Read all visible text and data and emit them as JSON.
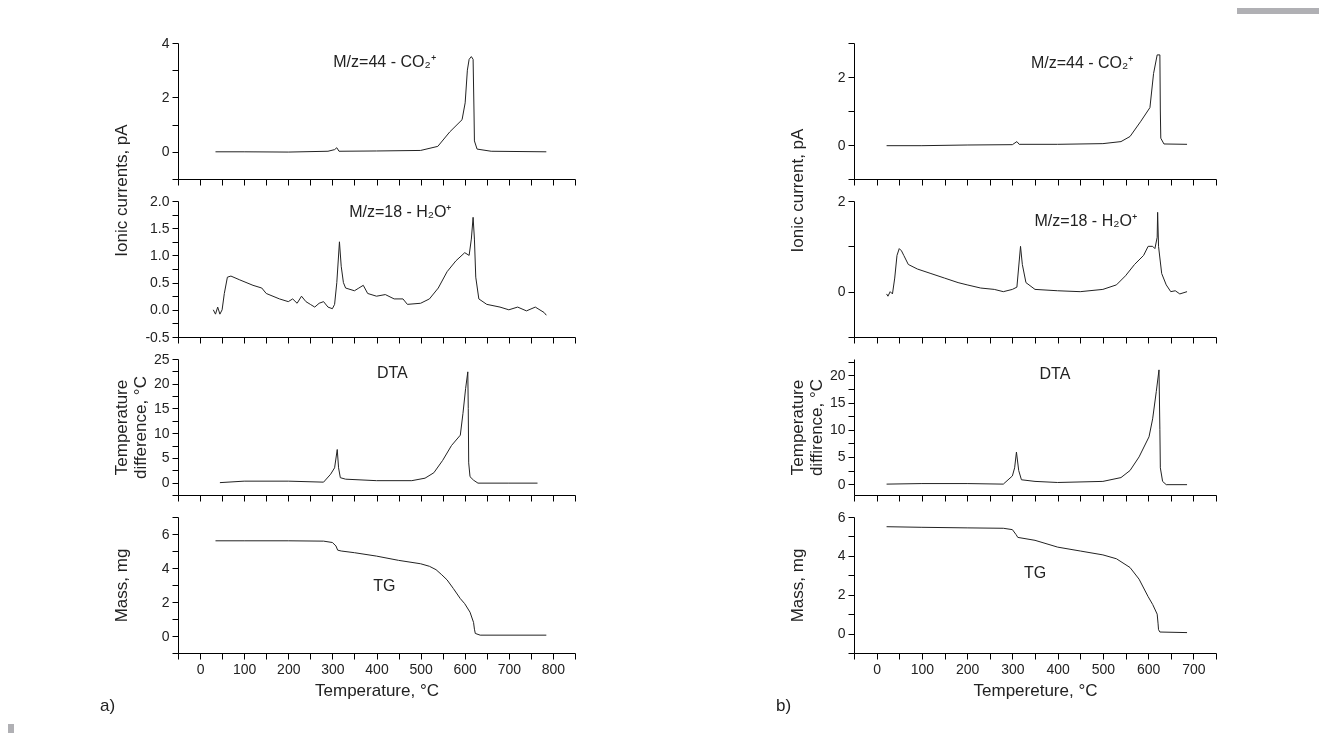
{
  "chart_data": [
    {
      "type": "line",
      "ylabel": "Ionic currents, pA",
      "xlim": [
        -50,
        850
      ],
      "xticks": [
        {
          "value": -50,
          "label": null
        },
        0,
        {
          "value": 50,
          "label": null
        },
        100,
        {
          "value": 150,
          "label": null
        },
        200,
        {
          "value": 250,
          "label": null
        },
        300,
        {
          "value": 350,
          "label": null
        },
        400,
        {
          "value": 450,
          "label": null
        },
        500,
        {
          "value": 550,
          "label": null
        },
        600,
        {
          "value": 650,
          "label": null
        },
        700,
        {
          "value": 750,
          "label": null
        },
        800,
        {
          "value": 850,
          "label": null
        }
      ],
      "ylim": [
        -1,
        4
      ],
      "yticks": [
        {
          "value": -1,
          "label": null
        },
        0,
        {
          "value": 1,
          "label": null
        },
        2,
        {
          "value": 3,
          "label": null
        },
        4
      ],
      "tick_labels": "y",
      "grid": false,
      "color": "#222222",
      "annotations": [
        "M/z=44 - CO₂⁺"
      ],
      "x": [
        35,
        100,
        200,
        290,
        305,
        310,
        315,
        400,
        500,
        539,
        566,
        594,
        601,
        606,
        610,
        615,
        619,
        621,
        622,
        628,
        660,
        785
      ],
      "values": [
        0,
        0,
        -0.01,
        0.02,
        0.08,
        0.15,
        0.02,
        0.03,
        0.05,
        0.2,
        0.73,
        1.18,
        1.8,
        3.0,
        3.4,
        3.5,
        3.4,
        1.5,
        0.4,
        0.1,
        0.02,
        0
      ]
    },
    {
      "type": "line",
      "xlim": [
        -50,
        850
      ],
      "xticks": [
        {
          "value": -50,
          "label": null
        },
        0,
        {
          "value": 50,
          "label": null
        },
        100,
        {
          "value": 150,
          "label": null
        },
        200,
        {
          "value": 250,
          "label": null
        },
        300,
        {
          "value": 350,
          "label": null
        },
        400,
        {
          "value": 450,
          "label": null
        },
        500,
        {
          "value": 550,
          "label": null
        },
        600,
        {
          "value": 650,
          "label": null
        },
        700,
        {
          "value": 750,
          "label": null
        },
        800,
        {
          "value": 850,
          "label": null
        }
      ],
      "ylim": [
        -0.5,
        2.0
      ],
      "yticks": [
        -0.5,
        {
          "value": -0.25,
          "label": null
        },
        {
          "value": 0,
          "label": "0.0"
        },
        {
          "value": 0.25,
          "label": null
        },
        0.5,
        {
          "value": 0.75,
          "label": null
        },
        {
          "value": 1,
          "label": "1.0"
        },
        {
          "value": 1.25,
          "label": null
        },
        1.5,
        {
          "value": 1.75,
          "label": null
        },
        {
          "value": 2,
          "label": "2.0"
        }
      ],
      "tick_labels": "y",
      "grid": false,
      "color": "#222222",
      "annotations": [
        "M/z=18 - H₂O⁺"
      ],
      "x": [
        30,
        35,
        40,
        45,
        50,
        55,
        62,
        70,
        90,
        120,
        140,
        150,
        180,
        200,
        210,
        220,
        230,
        240,
        250,
        260,
        270,
        280,
        290,
        300,
        305,
        310,
        316,
        320,
        325,
        330,
        350,
        360,
        370,
        380,
        400,
        420,
        440,
        460,
        470,
        500,
        520,
        540,
        560,
        580,
        600,
        610,
        615,
        619,
        622,
        625,
        632,
        650,
        680,
        700,
        720,
        740,
        760,
        780,
        785
      ],
      "values": [
        0,
        -0.08,
        0.05,
        -0.08,
        0,
        0.3,
        0.6,
        0.62,
        0.55,
        0.45,
        0.4,
        0.3,
        0.2,
        0.15,
        0.2,
        0.12,
        0.25,
        0.15,
        0.1,
        0.05,
        0.12,
        0.15,
        0.05,
        0.02,
        0.1,
        0.5,
        1.25,
        0.8,
        0.5,
        0.4,
        0.35,
        0.4,
        0.45,
        0.3,
        0.25,
        0.28,
        0.2,
        0.2,
        0.1,
        0.12,
        0.2,
        0.4,
        0.7,
        0.9,
        1.05,
        1.0,
        1.3,
        1.7,
        1.3,
        0.6,
        0.2,
        0.1,
        0.05,
        0,
        0.05,
        -0.02,
        0.05,
        -0.05,
        -0.1
      ]
    },
    {
      "type": "line",
      "ylabel": "Temperature\ndifference, °C",
      "xlim": [
        -50,
        850
      ],
      "xticks": [
        {
          "value": -50,
          "label": null
        },
        0,
        {
          "value": 50,
          "label": null
        },
        100,
        {
          "value": 150,
          "label": null
        },
        200,
        {
          "value": 250,
          "label": null
        },
        300,
        {
          "value": 350,
          "label": null
        },
        400,
        {
          "value": 450,
          "label": null
        },
        500,
        {
          "value": 550,
          "label": null
        },
        600,
        {
          "value": 650,
          "label": null
        },
        700,
        {
          "value": 750,
          "label": null
        },
        800,
        {
          "value": 850,
          "label": null
        }
      ],
      "ylim": [
        -2.5,
        25
      ],
      "yticks": [
        {
          "value": -2.5,
          "label": null
        },
        0,
        {
          "value": 2.5,
          "label": null
        },
        5,
        {
          "value": 7.5,
          "label": null
        },
        10,
        {
          "value": 12.5,
          "label": null
        },
        15,
        {
          "value": 17.5,
          "label": null
        },
        20,
        {
          "value": 22.5,
          "label": null
        },
        25
      ],
      "tick_labels": "y",
      "grid": false,
      "color": "#222222",
      "annotations": [
        "DTA"
      ],
      "x": [
        45,
        100,
        200,
        280,
        296,
        305,
        311,
        314,
        318,
        330,
        400,
        480,
        510,
        530,
        550,
        570,
        590,
        596,
        602,
        607,
        608,
        609,
        612,
        620,
        630,
        700,
        765
      ],
      "values": [
        0,
        0.3,
        0.3,
        0.1,
        1.7,
        3,
        6.7,
        3,
        1.0,
        0.7,
        0.4,
        0.4,
        0.9,
        2,
        4.5,
        7.5,
        9.6,
        14,
        19,
        22.4,
        15,
        4,
        1.2,
        0.5,
        -0.1,
        -0.1,
        -0.1
      ]
    },
    {
      "type": "line",
      "ylabel": "Mass, mg",
      "xlabel": "Temperature, °C",
      "xlim": [
        -50,
        850
      ],
      "xticks": [
        {
          "value": -50,
          "label": null
        },
        0,
        {
          "value": 50,
          "label": null
        },
        100,
        {
          "value": 150,
          "label": null
        },
        200,
        {
          "value": 250,
          "label": null
        },
        300,
        {
          "value": 350,
          "label": null
        },
        400,
        {
          "value": 450,
          "label": null
        },
        500,
        {
          "value": 550,
          "label": null
        },
        600,
        {
          "value": 650,
          "label": null
        },
        700,
        {
          "value": 750,
          "label": null
        },
        800,
        {
          "value": 850,
          "label": null
        }
      ],
      "ylim": [
        -1,
        7
      ],
      "yticks": [
        {
          "value": -1,
          "label": null
        },
        0,
        {
          "value": 1,
          "label": null
        },
        2,
        {
          "value": 3,
          "label": null
        },
        4,
        {
          "value": 5,
          "label": null
        },
        6,
        {
          "value": 7,
          "label": null
        }
      ],
      "grid": false,
      "color": "#222222",
      "annotations": [
        "TG",
        "a)"
      ],
      "x": [
        35,
        100,
        200,
        280,
        300,
        308,
        312,
        320,
        350,
        400,
        450,
        500,
        520,
        535,
        548,
        560,
        574,
        590,
        600,
        612,
        620,
        622,
        624,
        635,
        785
      ],
      "values": [
        5.6,
        5.6,
        5.6,
        5.58,
        5.5,
        5.3,
        5.05,
        5.0,
        4.9,
        4.7,
        4.45,
        4.25,
        4.1,
        3.9,
        3.6,
        3.3,
        2.8,
        2.2,
        1.9,
        1.4,
        0.8,
        0.4,
        0.15,
        0.05,
        0.05
      ]
    },
    {
      "type": "line",
      "ylabel": "Ionic current, pA",
      "xlim": [
        -50,
        750
      ],
      "xticks": [
        {
          "value": -50,
          "label": null
        },
        0,
        {
          "value": 50,
          "label": null
        },
        100,
        {
          "value": 150,
          "label": null
        },
        200,
        {
          "value": 250,
          "label": null
        },
        300,
        {
          "value": 350,
          "label": null
        },
        400,
        {
          "value": 450,
          "label": null
        },
        500,
        {
          "value": 550,
          "label": null
        },
        600,
        {
          "value": 650,
          "label": null
        },
        700,
        {
          "value": 750,
          "label": null
        }
      ],
      "ylim": [
        -1,
        3
      ],
      "yticks": [
        {
          "value": -1,
          "label": null
        },
        0,
        {
          "value": 1,
          "label": null
        },
        2,
        {
          "value": 3,
          "label": null
        }
      ],
      "tick_labels": "y",
      "grid": false,
      "color": "#222222",
      "annotations": [
        "M/z=44 - CO₂⁺"
      ],
      "x": [
        22,
        100,
        200,
        300,
        310,
        315,
        400,
        500,
        540,
        560,
        584,
        604,
        612,
        620,
        626,
        627,
        628,
        635,
        686
      ],
      "values": [
        -0.02,
        -0.02,
        0,
        0.01,
        0.1,
        0.02,
        0.02,
        0.04,
        0.1,
        0.25,
        0.7,
        1.1,
        2.1,
        2.65,
        2.65,
        1.0,
        0.2,
        0.03,
        0.02
      ]
    },
    {
      "type": "line",
      "xlim": [
        -50,
        750
      ],
      "xticks": [
        {
          "value": -50,
          "label": null
        },
        0,
        {
          "value": 50,
          "label": null
        },
        100,
        {
          "value": 150,
          "label": null
        },
        200,
        {
          "value": 250,
          "label": null
        },
        300,
        {
          "value": 350,
          "label": null
        },
        400,
        {
          "value": 450,
          "label": null
        },
        500,
        {
          "value": 550,
          "label": null
        },
        600,
        {
          "value": 650,
          "label": null
        },
        700,
        {
          "value": 750,
          "label": null
        }
      ],
      "ylim": [
        -1,
        2
      ],
      "yticks": [
        {
          "value": -1,
          "label": null
        },
        0,
        {
          "value": 1,
          "label": null
        },
        2
      ],
      "tick_labels": "y",
      "grid": false,
      "color": "#222222",
      "annotations": [
        "M/z=18 - H₂O⁺"
      ],
      "x": [
        22,
        25,
        30,
        35,
        40,
        45,
        50,
        55,
        60,
        70,
        90,
        120,
        150,
        180,
        200,
        230,
        260,
        280,
        300,
        310,
        318,
        322,
        330,
        350,
        400,
        450,
        500,
        530,
        550,
        570,
        590,
        600,
        610,
        615,
        620,
        621,
        623,
        630,
        640,
        650,
        660,
        670,
        686
      ],
      "values": [
        -0.05,
        -0.1,
        0,
        -0.05,
        0.3,
        0.8,
        0.95,
        0.9,
        0.8,
        0.6,
        0.5,
        0.4,
        0.3,
        0.2,
        0.15,
        0.08,
        0.05,
        0,
        0.05,
        0.1,
        1.0,
        0.6,
        0.2,
        0.05,
        0.02,
        0,
        0.05,
        0.15,
        0.35,
        0.6,
        0.8,
        1.0,
        1.0,
        0.95,
        1.2,
        1.75,
        1.0,
        0.4,
        0.15,
        0,
        0.02,
        -0.05,
        0
      ]
    },
    {
      "type": "line",
      "ylabel": "Temperature\ndiffirence, °C",
      "xlim": [
        -50,
        750
      ],
      "xticks": [
        {
          "value": -50,
          "label": null
        },
        0,
        {
          "value": 50,
          "label": null
        },
        100,
        {
          "value": 150,
          "label": null
        },
        200,
        {
          "value": 250,
          "label": null
        },
        300,
        {
          "value": 350,
          "label": null
        },
        400,
        {
          "value": 450,
          "label": null
        },
        500,
        {
          "value": 550,
          "label": null
        },
        600,
        {
          "value": 650,
          "label": null
        },
        700,
        {
          "value": 750,
          "label": null
        }
      ],
      "ylim": [
        -2,
        23
      ],
      "yticks": [
        0,
        {
          "value": 2.5,
          "label": null
        },
        5,
        {
          "value": 7.5,
          "label": null
        },
        10,
        {
          "value": 12.5,
          "label": null
        },
        15,
        {
          "value": 17.5,
          "label": null
        },
        20,
        {
          "value": 22.5,
          "label": null
        }
      ],
      "tick_labels": "y",
      "grid": false,
      "color": "#222222",
      "annotations": [
        "DTA"
      ],
      "x": [
        22,
        100,
        200,
        280,
        300,
        305,
        309,
        314,
        320,
        350,
        400,
        500,
        540,
        560,
        580,
        602,
        610,
        618,
        624,
        626,
        627,
        632,
        640,
        686
      ],
      "values": [
        0,
        0.1,
        0.1,
        0,
        1.5,
        3,
        5.9,
        2.5,
        0.8,
        0.5,
        0.3,
        0.5,
        1.2,
        2.5,
        5,
        8.7,
        12,
        17,
        21,
        10,
        3,
        0.5,
        -0.1,
        -0.1
      ]
    },
    {
      "type": "line",
      "ylabel": "Mass, mg",
      "xlabel": "Tempereture, °C",
      "xlim": [
        -50,
        750
      ],
      "xticks": [
        {
          "value": -50,
          "label": null
        },
        0,
        {
          "value": 50,
          "label": null
        },
        100,
        {
          "value": 150,
          "label": null
        },
        200,
        {
          "value": 250,
          "label": null
        },
        300,
        {
          "value": 350,
          "label": null
        },
        400,
        {
          "value": 450,
          "label": null
        },
        500,
        {
          "value": 550,
          "label": null
        },
        600,
        {
          "value": 650,
          "label": null
        },
        700,
        {
          "value": 750,
          "label": null
        }
      ],
      "ylim": [
        -1,
        6
      ],
      "yticks": [
        {
          "value": -1,
          "label": null
        },
        0,
        {
          "value": 1,
          "label": null
        },
        2,
        {
          "value": 3,
          "label": null
        },
        4,
        {
          "value": 5,
          "label": null
        },
        6
      ],
      "grid": false,
      "color": "#222222",
      "annotations": [
        "TG",
        "b)"
      ],
      "x": [
        22,
        100,
        200,
        280,
        300,
        308,
        312,
        350,
        400,
        450,
        500,
        530,
        560,
        580,
        600,
        610,
        620,
        622,
        623,
        626,
        686
      ],
      "values": [
        5.5,
        5.47,
        5.44,
        5.42,
        5.35,
        5.1,
        4.95,
        4.8,
        4.45,
        4.25,
        4.05,
        3.85,
        3.4,
        2.8,
        1.9,
        1.5,
        1.0,
        0.5,
        0.2,
        0.08,
        0.05
      ]
    }
  ]
}
